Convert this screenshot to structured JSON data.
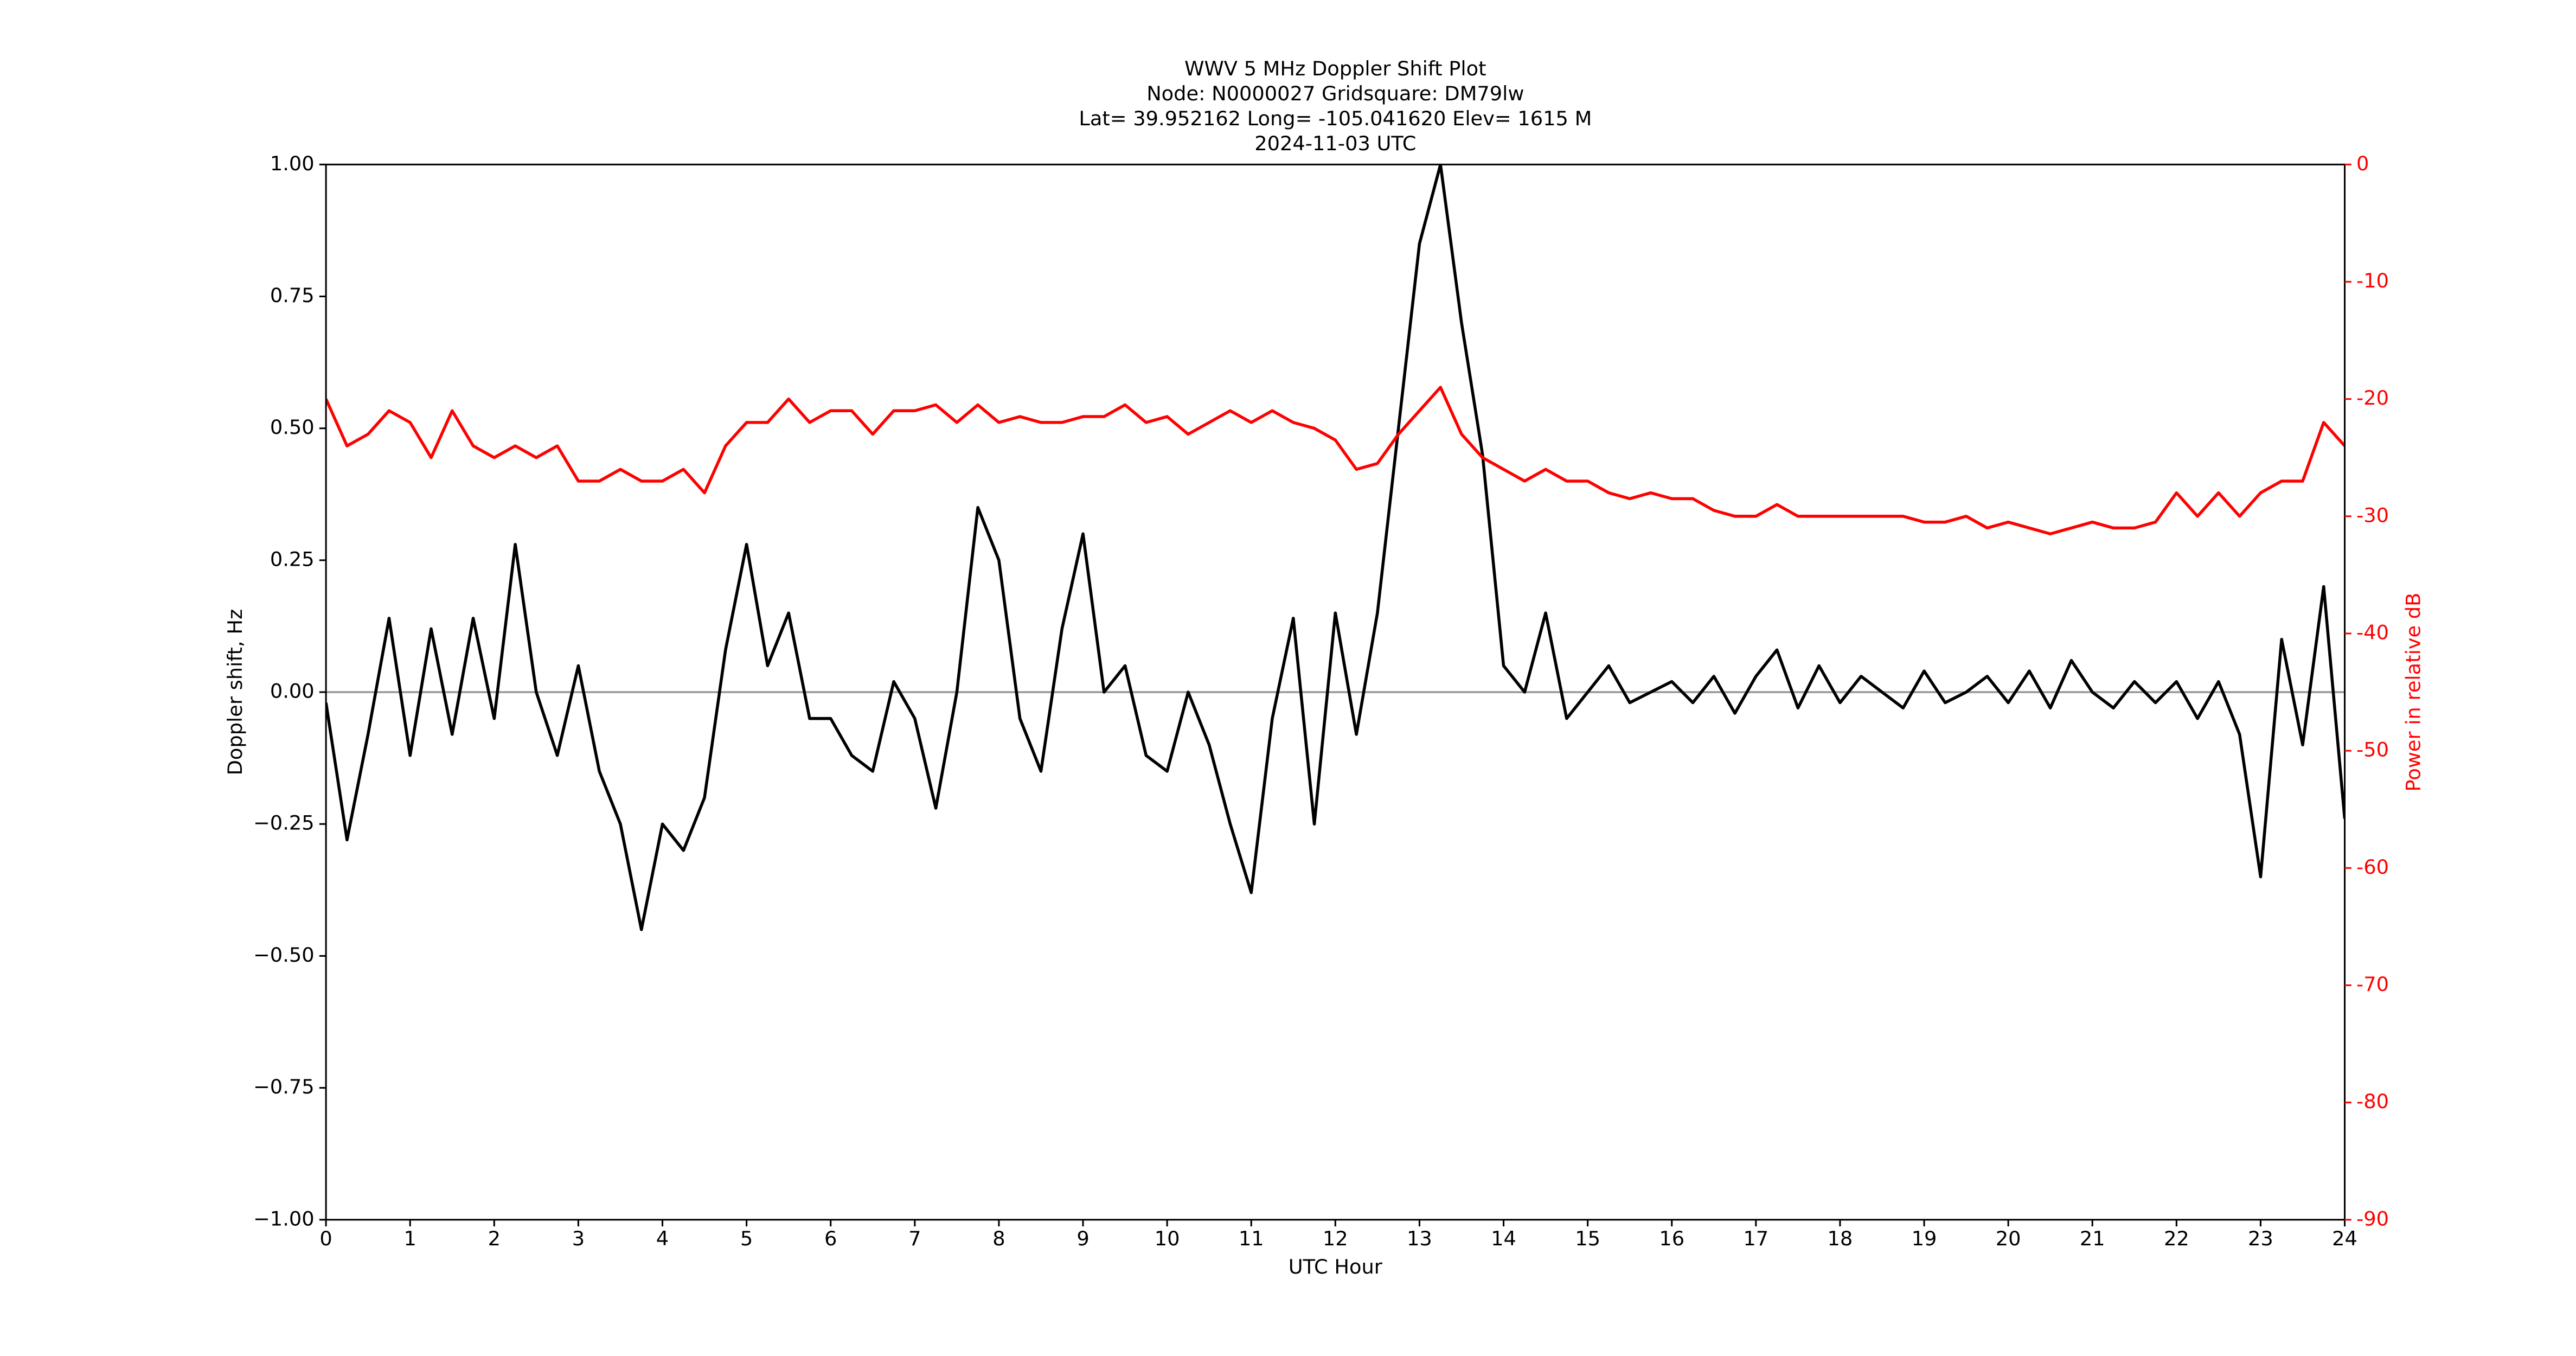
{
  "chart_data": {
    "type": "line",
    "title_lines": [
      "WWV 5 MHz Doppler Shift Plot",
      "Node:  N0000027     Gridsquare:  DM79lw",
      "Lat= 39.952162    Long= -105.041620    Elev= 1615 M",
      "2024-11-03  UTC"
    ],
    "xlabel": "UTC Hour",
    "ylabel": "Doppler shift, Hz",
    "y2label": "Power in relative dB",
    "y2color": "#ff0000",
    "x": [
      0,
      0.25,
      0.5,
      0.75,
      1,
      1.25,
      1.5,
      1.75,
      2,
      2.25,
      2.5,
      2.75,
      3,
      3.25,
      3.5,
      3.75,
      4,
      4.25,
      4.5,
      4.75,
      5,
      5.25,
      5.5,
      5.75,
      6,
      6.25,
      6.5,
      6.75,
      7,
      7.25,
      7.5,
      7.75,
      8,
      8.25,
      8.5,
      8.75,
      9,
      9.25,
      9.5,
      9.75,
      10,
      10.25,
      10.5,
      10.75,
      11,
      11.25,
      11.5,
      11.75,
      12,
      12.25,
      12.5,
      12.75,
      13,
      13.25,
      13.5,
      13.75,
      14,
      14.25,
      14.5,
      14.75,
      15,
      15.25,
      15.5,
      15.75,
      16,
      16.25,
      16.5,
      16.75,
      17,
      17.25,
      17.5,
      17.75,
      18,
      18.25,
      18.5,
      18.75,
      19,
      19.25,
      19.5,
      19.75,
      20,
      20.25,
      20.5,
      20.75,
      21,
      21.25,
      21.5,
      21.75,
      22,
      22.25,
      22.5,
      22.75,
      23,
      23.25,
      23.5,
      23.75,
      24
    ],
    "series": [
      {
        "color": "#000000",
        "axis": "y",
        "values": [
          -0.02,
          -0.28,
          -0.08,
          0.14,
          -0.12,
          0.12,
          -0.08,
          0.14,
          -0.05,
          0.28,
          0.0,
          -0.12,
          0.05,
          -0.15,
          -0.25,
          -0.45,
          -0.25,
          -0.3,
          -0.2,
          0.08,
          0.28,
          0.05,
          0.15,
          -0.05,
          -0.05,
          -0.12,
          -0.15,
          0.02,
          -0.05,
          -0.22,
          0.0,
          0.35,
          0.25,
          -0.05,
          -0.15,
          0.12,
          0.3,
          0.0,
          0.05,
          -0.12,
          -0.15,
          0.0,
          -0.1,
          -0.25,
          -0.38,
          -0.05,
          0.14,
          -0.25,
          0.15,
          -0.08,
          0.15,
          0.5,
          0.85,
          1.0,
          0.7,
          0.45,
          0.05,
          0.0,
          0.15,
          -0.05,
          0.0,
          0.05,
          -0.02,
          0.0,
          0.02,
          -0.02,
          0.03,
          -0.04,
          0.03,
          0.08,
          -0.03,
          0.05,
          -0.02,
          0.03,
          0.0,
          -0.03,
          0.04,
          -0.02,
          0.0,
          0.03,
          -0.02,
          0.04,
          -0.03,
          0.06,
          0.0,
          -0.03,
          0.02,
          -0.02,
          0.02,
          -0.05,
          0.02,
          -0.08,
          -0.35,
          0.1,
          -0.1,
          0.2,
          -0.24
        ]
      },
      {
        "color": "#ff0000",
        "axis": "y2",
        "values": [
          -20,
          -24,
          -23,
          -21,
          -22,
          -25,
          -21,
          -24,
          -25,
          -24,
          -25,
          -24,
          -27,
          -27,
          -26,
          -27,
          -27,
          -26,
          -28,
          -24,
          -22,
          -22,
          -20,
          -22,
          -21,
          -21,
          -23,
          -21,
          -21,
          -20.5,
          -22,
          -20.5,
          -22,
          -21.5,
          -22,
          -22,
          -21.5,
          -21.5,
          -20.5,
          -22,
          -21.5,
          -23,
          -22,
          -21,
          -22,
          -21,
          -22,
          -22.5,
          -23.5,
          -26,
          -25.5,
          -23,
          -21,
          -19,
          -23,
          -25,
          -26,
          -27,
          -26,
          -27,
          -27,
          -28,
          -28.5,
          -28,
          -28.5,
          -28.5,
          -29.5,
          -30,
          -30,
          -29,
          -30,
          -30,
          -30,
          -30,
          -30,
          -30,
          -30.5,
          -30.5,
          -30,
          -31,
          -30.5,
          -31,
          -31.5,
          -31,
          -30.5,
          -31,
          -31,
          -30.5,
          -28,
          -30,
          -28,
          -30,
          -28,
          -27,
          -27,
          -22,
          -24
        ]
      }
    ],
    "hline": {
      "y": 0,
      "color": "#999999"
    },
    "xlim": [
      0,
      24
    ],
    "xticks": [
      0,
      1,
      2,
      3,
      4,
      5,
      6,
      7,
      8,
      9,
      10,
      11,
      12,
      13,
      14,
      15,
      16,
      17,
      18,
      19,
      20,
      21,
      22,
      23,
      24
    ],
    "ylim": [
      -1,
      1
    ],
    "yticks": [
      {
        "value": -1,
        "label": "−1.00"
      },
      {
        "value": -0.75,
        "label": "−0.75"
      },
      {
        "value": -0.5,
        "label": "−0.50"
      },
      {
        "value": -0.25,
        "label": "−0.25"
      },
      {
        "value": 0,
        "label": "0.00"
      },
      {
        "value": 0.25,
        "label": "0.25"
      },
      {
        "value": 0.5,
        "label": "0.50"
      },
      {
        "value": 0.75,
        "label": "0.75"
      },
      {
        "value": 1,
        "label": "1.00"
      }
    ],
    "y2lim": [
      -90,
      0
    ],
    "y2ticks": [
      -90,
      -80,
      -70,
      -60,
      -50,
      -40,
      -30,
      -20,
      -10,
      0
    ]
  }
}
